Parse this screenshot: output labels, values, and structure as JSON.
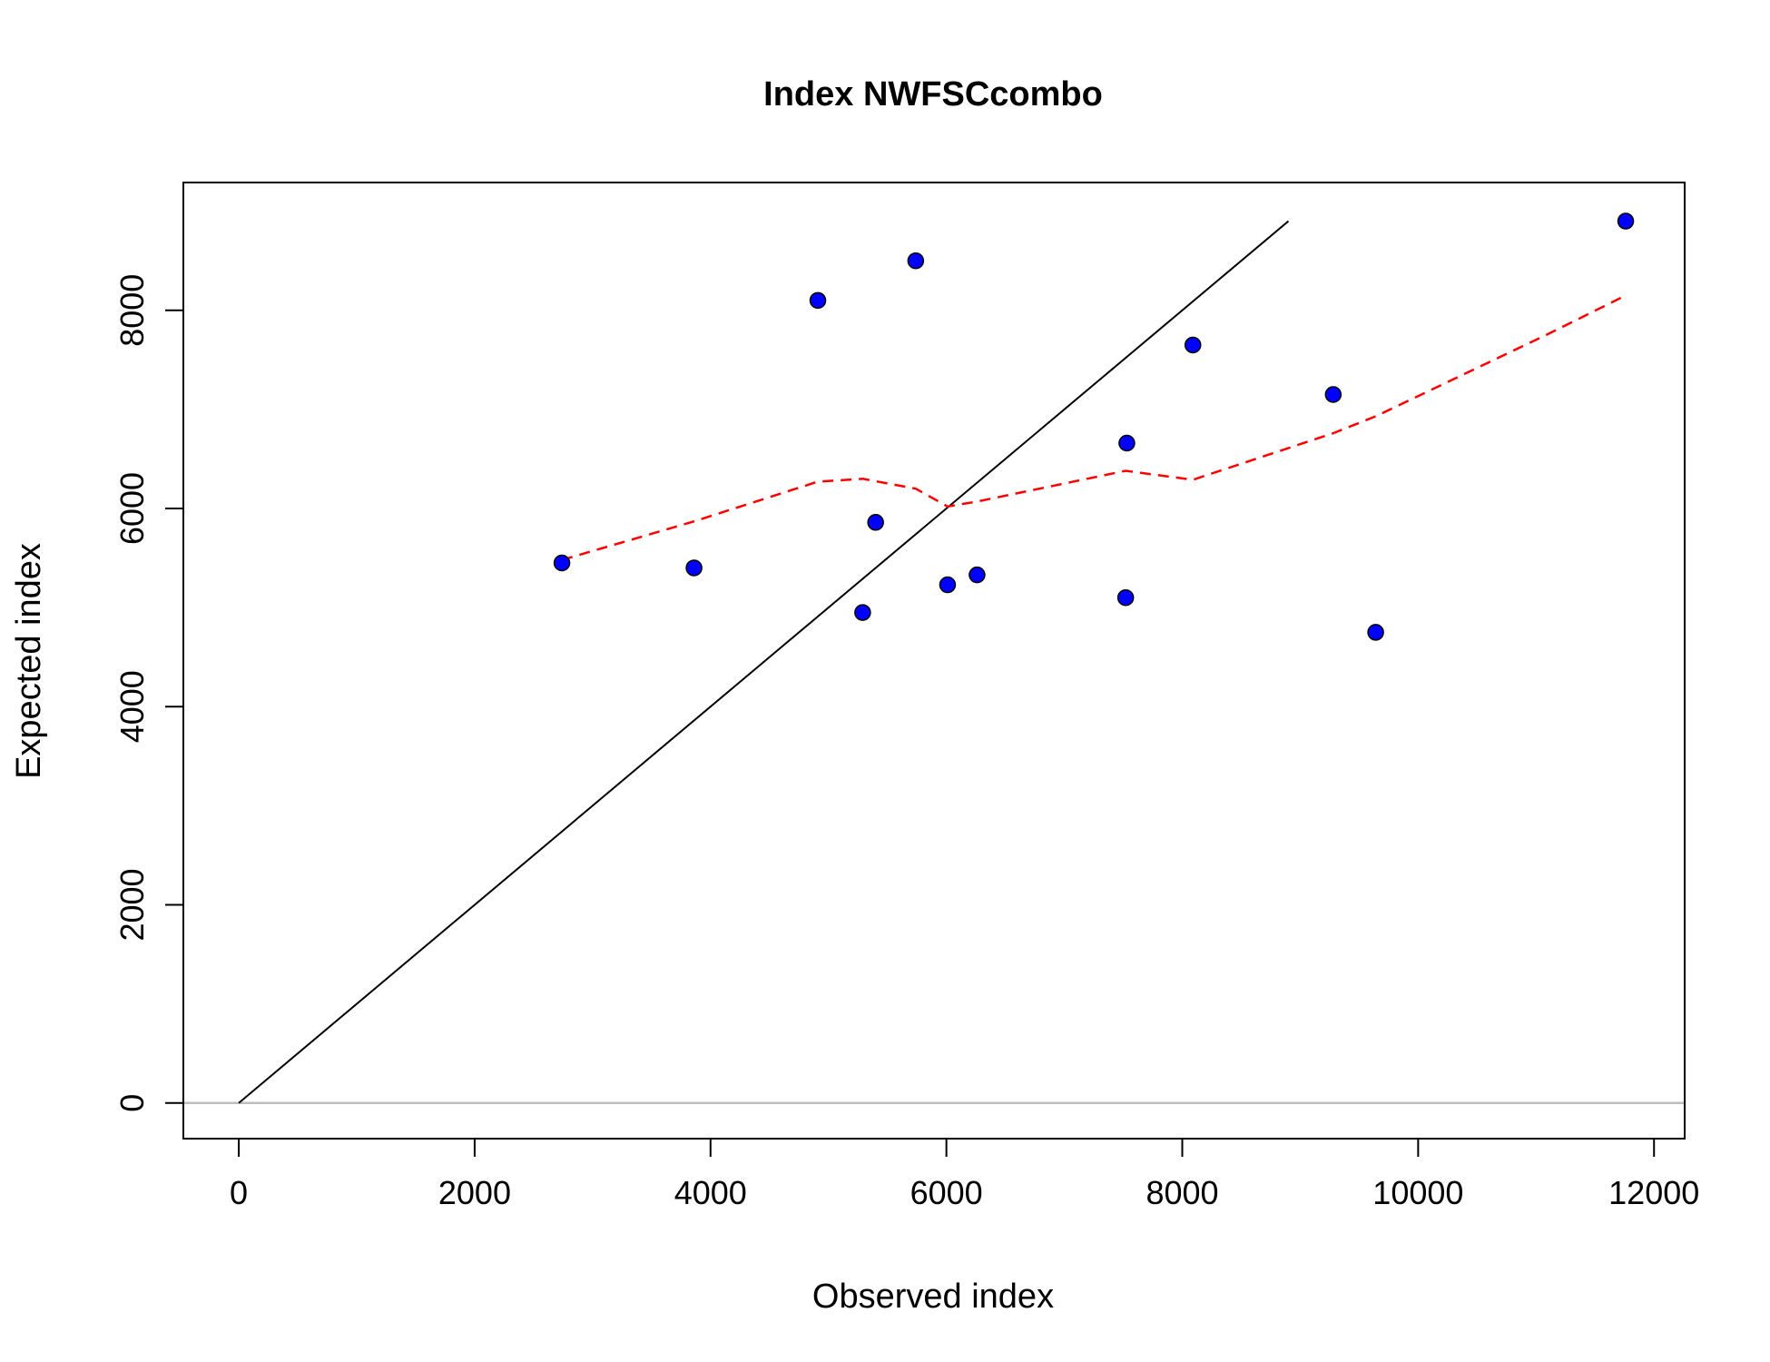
{
  "chart_data": {
    "type": "scatter",
    "title": "Index NWFSCcombo",
    "xlabel": "Observed index",
    "ylabel": "Expected index",
    "xlim": [
      -470,
      12260
    ],
    "ylim": [
      -360,
      9290
    ],
    "x_ticks": [
      0,
      2000,
      4000,
      6000,
      8000,
      10000,
      12000
    ],
    "y_ticks": [
      0,
      2000,
      4000,
      6000,
      8000
    ],
    "x_tick_labels": [
      "0",
      "2000",
      "4000",
      "6000",
      "8000",
      "10000",
      "12000"
    ],
    "y_tick_labels": [
      "0",
      "2000",
      "4000",
      "6000",
      "8000"
    ],
    "grid": false,
    "legend": "none",
    "points": {
      "color": "#0000ff",
      "x": [
        2740,
        3860,
        4910,
        5290,
        5400,
        5740,
        6010,
        6260,
        7520,
        7530,
        8090,
        9280,
        9640,
        11760
      ],
      "y": [
        5450,
        5400,
        8100,
        4950,
        5860,
        8500,
        5230,
        5330,
        5100,
        6660,
        7650,
        7150,
        4750,
        8900
      ]
    },
    "identity_line": {
      "color": "#000000",
      "x": [
        0,
        8900
      ],
      "y": [
        0,
        8900
      ]
    },
    "zero_line": {
      "color": "#bebebe",
      "y": 0
    },
    "smoother": {
      "color": "#ff0000",
      "style": "dashed",
      "x": [
        2740,
        3860,
        4910,
        5290,
        5740,
        6010,
        6260,
        7520,
        8090,
        9280,
        9640,
        11100,
        11760
      ],
      "y": [
        5480,
        5870,
        6270,
        6300,
        6200,
        6020,
        6070,
        6380,
        6290,
        6760,
        6930,
        7760,
        8150
      ]
    }
  }
}
